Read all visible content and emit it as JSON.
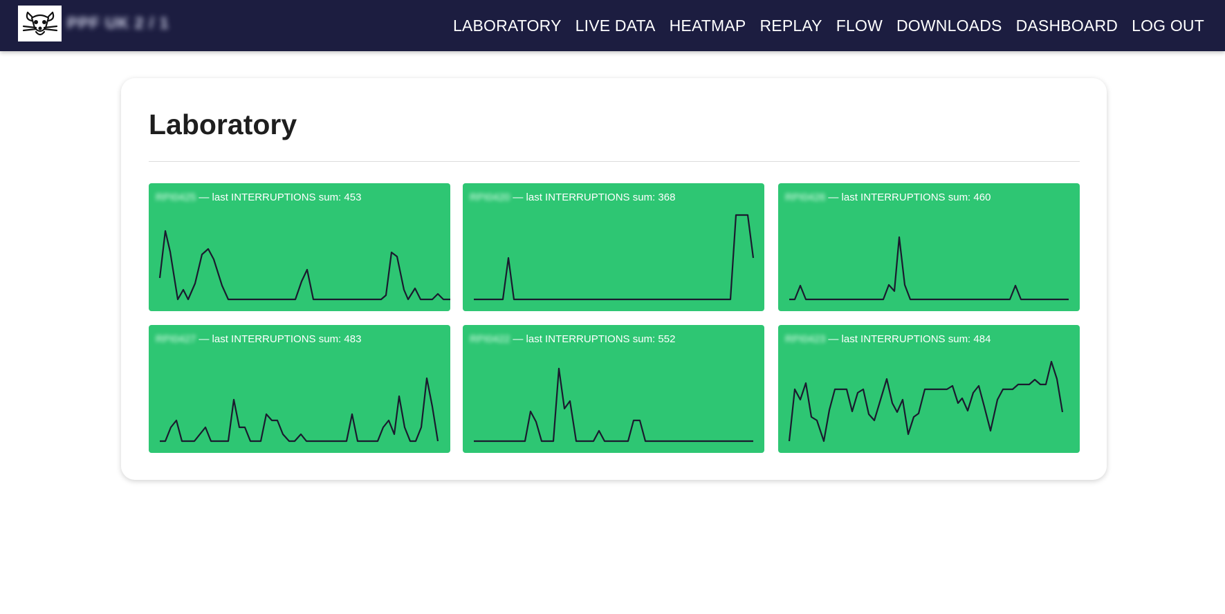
{
  "navbar": {
    "brand": "PPF UK 2 / 1",
    "links": [
      "LABORATORY",
      "LIVE DATA",
      "HEATMAP",
      "REPLAY",
      "FLOW",
      "DOWNLOADS",
      "DASHBOARD",
      "LOG OUT"
    ]
  },
  "page": {
    "title": "Laboratory"
  },
  "tiles": [
    {
      "id": "RPI0425",
      "caption": "— last INTERRUPTIONS sum: 453"
    },
    {
      "id": "RPI0420",
      "caption": "— last INTERRUPTIONS sum: 368"
    },
    {
      "id": "RPI0426",
      "caption": "— last INTERRUPTIONS sum: 460"
    },
    {
      "id": "RPI0427",
      "caption": "— last INTERRUPTIONS sum: 483"
    },
    {
      "id": "RPI0422",
      "caption": "— last INTERRUPTIONS sum: 552"
    },
    {
      "id": "RPI0423",
      "caption": "— last INTERRUPTIONS sum: 484"
    }
  ],
  "colors": {
    "navbar": "#1c1d40",
    "tile": "#2ec673",
    "sparkline": "#1a1a2e"
  }
}
